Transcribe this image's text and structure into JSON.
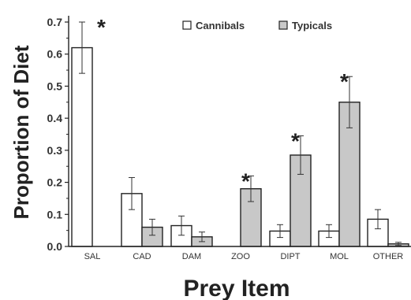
{
  "chart_data": {
    "type": "bar",
    "title": "",
    "ylabel": "Proportion of Diet",
    "xlabel": "Prey Item",
    "ylim": [
      0,
      0.7
    ],
    "yticks": [
      "0.0",
      "0.1",
      "0.2",
      "0.3",
      "0.4",
      "0.5",
      "0.6",
      "0.7"
    ],
    "categories": [
      "SAL",
      "CAD",
      "DAM",
      "ZOO",
      "DIPT",
      "MOL",
      "OTHER"
    ],
    "legend_position": "top-right",
    "series": [
      {
        "name": "Cannibals",
        "color": "#ffffff",
        "values": [
          0.62,
          0.165,
          0.065,
          0.0,
          0.048,
          0.048,
          0.085
        ],
        "errors": [
          0.08,
          0.05,
          0.03,
          0.0,
          0.02,
          0.02,
          0.03
        ]
      },
      {
        "name": "Typicals",
        "color": "#c8c8c8",
        "values": [
          0.0,
          0.06,
          0.03,
          0.18,
          0.285,
          0.45,
          0.008
        ],
        "errors": [
          0.0,
          0.025,
          0.015,
          0.04,
          0.06,
          0.08,
          0.005
        ]
      }
    ],
    "significance": [
      {
        "category": "SAL",
        "series": "Cannibals",
        "label": "*"
      },
      {
        "category": "ZOO",
        "series": "Typicals",
        "label": "*"
      },
      {
        "category": "DIPT",
        "series": "Typicals",
        "label": "*"
      },
      {
        "category": "MOL",
        "series": "Typicals",
        "label": "*"
      }
    ]
  }
}
